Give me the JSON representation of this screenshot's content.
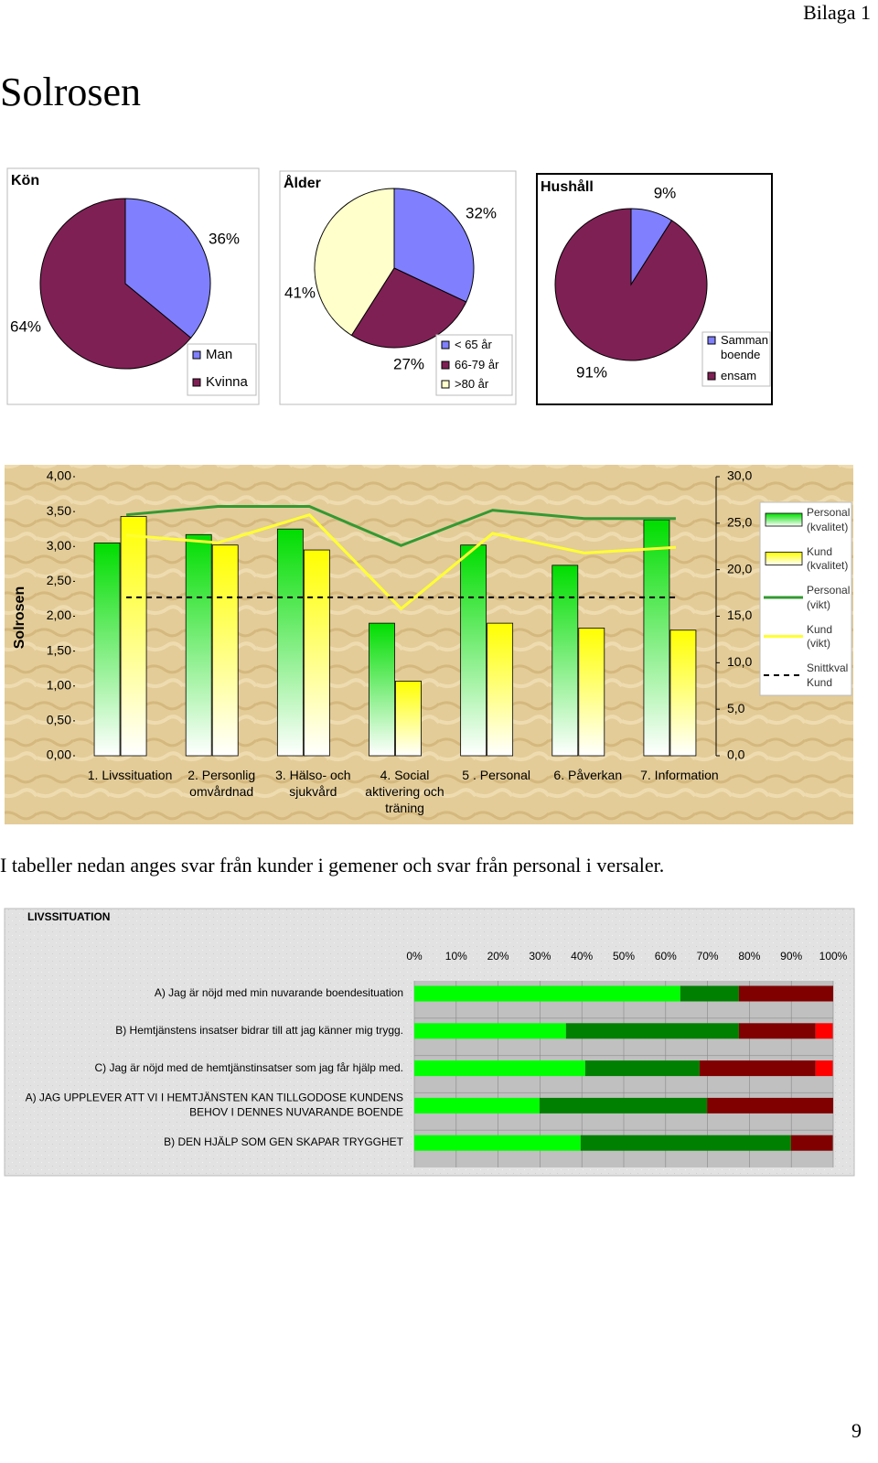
{
  "header": {
    "label": "Bilaga 1",
    "title": "Solrosen"
  },
  "note": "I tabeller nedan anges svar från kunder i gemener och svar från personal i versaler.",
  "page_number": "9",
  "chart_data": [
    {
      "type": "pie",
      "title": "Kön",
      "categories": [
        "Man",
        "Kvinna"
      ],
      "values": [
        36,
        64
      ],
      "value_labels": [
        "36%",
        "64%"
      ],
      "colors": [
        "#8080ff",
        "#7f2055"
      ]
    },
    {
      "type": "pie",
      "title": "Ålder",
      "categories": [
        "< 65 år",
        "66-79 år",
        ">80 år"
      ],
      "values": [
        32,
        27,
        41
      ],
      "value_labels": [
        "32%",
        "27%",
        "41%"
      ],
      "colors": [
        "#8080ff",
        "#7f2055",
        "#ffffcc"
      ]
    },
    {
      "type": "pie",
      "title": "Hushåll",
      "categories": [
        "Samman boende",
        "ensam"
      ],
      "values": [
        9,
        91
      ],
      "value_labels": [
        "9%",
        "91%"
      ],
      "colors": [
        "#8080ff",
        "#7f2055"
      ]
    },
    {
      "type": "bar-line",
      "ylabel": "Solrosen",
      "categories": [
        "1. Livssituation",
        "2. Personlig omvårdnad",
        "3. Hälso- och sjukvård",
        "4. Social aktivering och träning",
        "5 . Personal",
        "6. Påverkan",
        "7. Information"
      ],
      "ylim": [
        0,
        4
      ],
      "yticks": [
        {
          "value": 0,
          "label": "0,00"
        },
        {
          "value": 0.5,
          "label": "0,50"
        },
        {
          "value": 1,
          "label": "1,00"
        },
        {
          "value": 1.5,
          "label": "1,50"
        },
        {
          "value": 2,
          "label": "2,00"
        },
        {
          "value": 2.5,
          "label": "2,50"
        },
        {
          "value": 3,
          "label": "3,00"
        },
        {
          "value": 3.5,
          "label": "3,50"
        },
        {
          "value": 4,
          "label": "4,00"
        }
      ],
      "y2lim": [
        0,
        30
      ],
      "y2ticks": [
        {
          "value": 0,
          "label": "0,0"
        },
        {
          "value": 5,
          "label": "5,0"
        },
        {
          "value": 10,
          "label": "10,0"
        },
        {
          "value": 15,
          "label": "15,0"
        },
        {
          "value": 20,
          "label": "20,0"
        },
        {
          "value": 25,
          "label": "25,0"
        },
        {
          "value": 30,
          "label": "30,0"
        }
      ],
      "series": [
        {
          "name": "Personal (kvalitet)",
          "type": "bar",
          "color": "#00dd00",
          "values": [
            3.05,
            3.17,
            3.25,
            1.9,
            3.02,
            2.73,
            3.38
          ]
        },
        {
          "name": "Kund (kvalitet)",
          "type": "bar",
          "color": "#ffff00",
          "values": [
            3.43,
            3.02,
            2.95,
            1.07,
            1.9,
            1.83,
            1.8
          ]
        },
        {
          "name": "Personal (vikt)",
          "type": "line",
          "axis": "y2",
          "color": "#339933",
          "values": [
            25.9,
            26.8,
            26.8,
            22.6,
            26.4,
            25.5,
            25.5
          ]
        },
        {
          "name": "Kund (vikt)",
          "type": "line",
          "axis": "y2",
          "color": "#ffff33",
          "values": [
            23.7,
            22.9,
            25.9,
            15.8,
            23.9,
            21.8,
            22.4
          ]
        },
        {
          "name": "Snittkval Kund",
          "type": "line",
          "dashed": true,
          "color": "#000000",
          "values": [
            2.27,
            2.27,
            2.27,
            2.27,
            2.27,
            2.27,
            2.27
          ]
        }
      ]
    },
    {
      "type": "stacked-barh",
      "title": "LIVSSITUATION",
      "categories": [
        "A) Jag är nöjd med min nuvarande boendesituation",
        "B) Hemtjänstens insatser bidrar till att jag känner mig trygg.",
        "C) Jag är nöjd med de hemtjänstinsatser som jag får hjälp med.",
        "A) JAG UPPLEVER ATT VI I HEMTJÄNSTEN KAN TILLGODOSE KUNDENS BEHOV I DENNES NUVARANDE BOENDE",
        "B) DEN HJÄLP SOM GEN SKAPAR TRYGGHET"
      ],
      "xlim": [
        0,
        100
      ],
      "xticks": [
        {
          "value": 0,
          "label": "0%"
        },
        {
          "value": 10,
          "label": "10%"
        },
        {
          "value": 20,
          "label": "20%"
        },
        {
          "value": 30,
          "label": "30%"
        },
        {
          "value": 40,
          "label": "40%"
        },
        {
          "value": 50,
          "label": "50%"
        },
        {
          "value": 60,
          "label": "60%"
        },
        {
          "value": 70,
          "label": "70%"
        },
        {
          "value": 80,
          "label": "80%"
        },
        {
          "value": 90,
          "label": "90%"
        },
        {
          "value": 100,
          "label": "100%"
        }
      ],
      "series": [
        {
          "color": "#00ff00",
          "values": [
            63.5,
            36.2,
            40.8,
            29.9,
            39.7
          ]
        },
        {
          "color": "#008000",
          "values": [
            14,
            41.3,
            27.3,
            40,
            50.2
          ]
        },
        {
          "color": "#800000",
          "values": [
            22.5,
            18.3,
            27.7,
            30.1,
            10
          ]
        },
        {
          "color": "#ff0000",
          "values": [
            0,
            4.1,
            4.1,
            0,
            0
          ]
        }
      ]
    }
  ]
}
